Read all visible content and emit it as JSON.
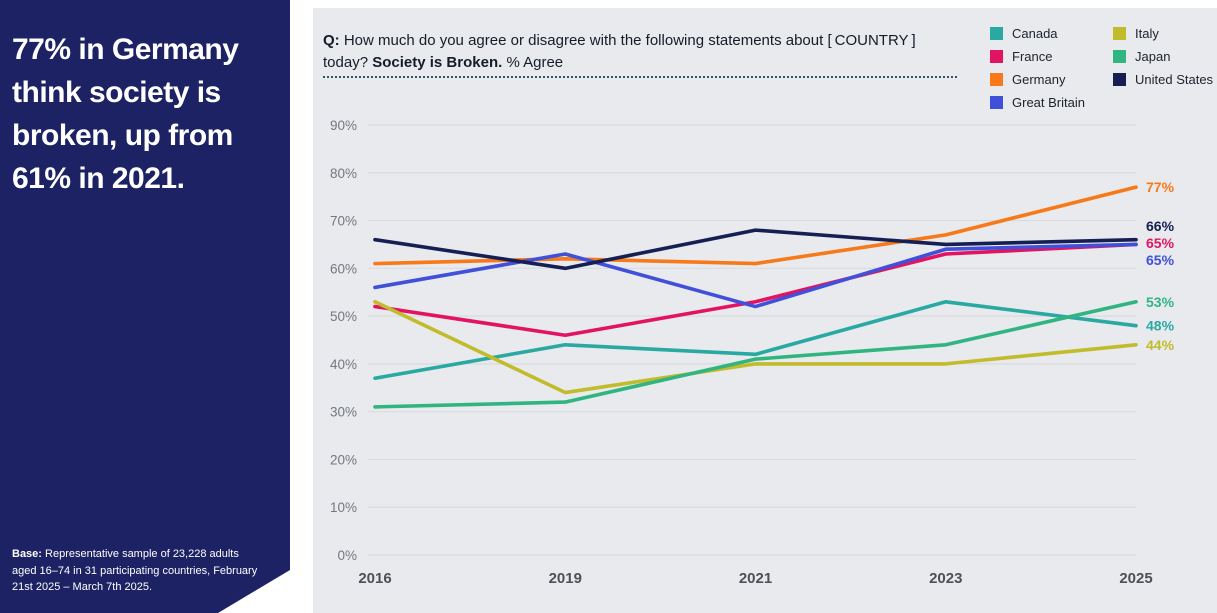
{
  "sidebar": {
    "headline": "77% in Germany think society is broken, up from 61% in 2021.",
    "base_label": "Base:",
    "base_text": " Representative sample of 23,228 adults aged 16–74 in 31 participating countries, February 21st 2025 – March 7th 2025."
  },
  "question": {
    "prefix": "Q:",
    "body": " How much do you agree or disagree with the following statements about [ COUNTRY ] today? ",
    "statement": "Society is Broken.",
    "suffix": " % Agree"
  },
  "chart_data": {
    "type": "line",
    "x": [
      "2016",
      "2019",
      "2021",
      "2023",
      "2025"
    ],
    "series": [
      {
        "name": "Canada",
        "color": "#2aa9a3",
        "values": [
          37,
          44,
          42,
          53,
          48
        ],
        "end_label": "48%"
      },
      {
        "name": "France",
        "color": "#e21462",
        "values": [
          52,
          46,
          53,
          63,
          65
        ],
        "end_label": "65%"
      },
      {
        "name": "Germany",
        "color": "#f8791a",
        "values": [
          61,
          62,
          61,
          67,
          77
        ],
        "end_label": "77%"
      },
      {
        "name": "Great Britain",
        "color": "#4150d8",
        "values": [
          56,
          63,
          52,
          64,
          65
        ],
        "end_label": "65%"
      },
      {
        "name": "Italy",
        "color": "#c2bb2b",
        "values": [
          53,
          34,
          40,
          40,
          44
        ],
        "end_label": "44%"
      },
      {
        "name": "Japan",
        "color": "#31b580",
        "values": [
          31,
          32,
          41,
          44,
          53
        ],
        "end_label": "53%"
      },
      {
        "name": "United States",
        "color": "#161f53",
        "values": [
          66,
          60,
          68,
          65,
          66
        ],
        "end_label": "66%"
      }
    ],
    "ylim": [
      0,
      90
    ],
    "ytick_step": 10,
    "yticks": [
      "0%",
      "10%",
      "20%",
      "30%",
      "40%",
      "50%",
      "60%",
      "70%",
      "80%",
      "90%"
    ],
    "grid": true,
    "grid_color": "#d9dbe0",
    "legend_position": "top-right",
    "legend_columns": [
      [
        "Canada",
        "France",
        "Germany",
        "Great Britain"
      ],
      [
        "Italy",
        "Japan",
        "United States"
      ]
    ]
  },
  "colors": {
    "sidebar_bg": "#1c2263",
    "panel_bg": "#e8eaed",
    "dotted_divider": "#2e5766"
  }
}
